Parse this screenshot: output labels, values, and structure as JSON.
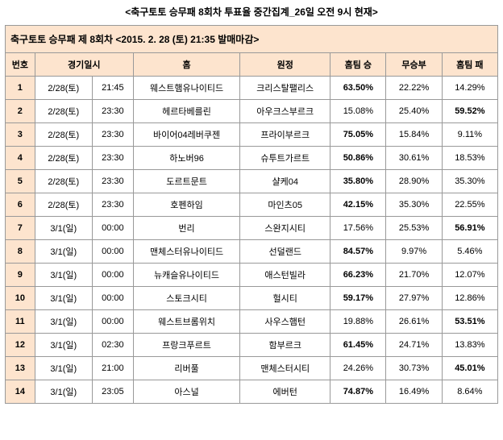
{
  "title": "<축구토토 승무패 8회차 투표율 중간집계_26일 오전 9시 현재>",
  "subtitle": "축구토토 승무패 제 8회차 <2015. 2. 28 (토) 21:35 발매마감>",
  "colors": {
    "header_bg": "#fde4ce",
    "border": "#999999",
    "text": "#000000",
    "bg": "#ffffff"
  },
  "columns": {
    "num": "번호",
    "datetime": "경기일시",
    "home": "홈",
    "away": "원정",
    "win": "홈팀 승",
    "draw": "무승부",
    "lose": "홈팀 패"
  },
  "rows": [
    {
      "num": "1",
      "date": "2/28(토)",
      "time": "21:45",
      "home": "웨스트햄유나이티드",
      "away": "크리스탈팰리스",
      "win": "63.50%",
      "draw": "22.22%",
      "lose": "14.29%",
      "bold": "win"
    },
    {
      "num": "2",
      "date": "2/28(토)",
      "time": "23:30",
      "home": "헤르타베를린",
      "away": "아우크스부르크",
      "win": "15.08%",
      "draw": "25.40%",
      "lose": "59.52%",
      "bold": "lose"
    },
    {
      "num": "3",
      "date": "2/28(토)",
      "time": "23:30",
      "home": "바이어04레버쿠젠",
      "away": "프라이부르크",
      "win": "75.05%",
      "draw": "15.84%",
      "lose": "9.11%",
      "bold": "win"
    },
    {
      "num": "4",
      "date": "2/28(토)",
      "time": "23:30",
      "home": "하노버96",
      "away": "슈투트가르트",
      "win": "50.86%",
      "draw": "30.61%",
      "lose": "18.53%",
      "bold": "win"
    },
    {
      "num": "5",
      "date": "2/28(토)",
      "time": "23:30",
      "home": "도르트문트",
      "away": "샬케04",
      "win": "35.80%",
      "draw": "28.90%",
      "lose": "35.30%",
      "bold": "win"
    },
    {
      "num": "6",
      "date": "2/28(토)",
      "time": "23:30",
      "home": "호펜하임",
      "away": "마인츠05",
      "win": "42.15%",
      "draw": "35.30%",
      "lose": "22.55%",
      "bold": "win"
    },
    {
      "num": "7",
      "date": "3/1(일)",
      "time": "00:00",
      "home": "번리",
      "away": "스완지시티",
      "win": "17.56%",
      "draw": "25.53%",
      "lose": "56.91%",
      "bold": "lose"
    },
    {
      "num": "8",
      "date": "3/1(일)",
      "time": "00:00",
      "home": "맨체스터유나이티드",
      "away": "선덜랜드",
      "win": "84.57%",
      "draw": "9.97%",
      "lose": "5.46%",
      "bold": "win"
    },
    {
      "num": "9",
      "date": "3/1(일)",
      "time": "00:00",
      "home": "뉴캐슬유나이티드",
      "away": "애스턴빌라",
      "win": "66.23%",
      "draw": "21.70%",
      "lose": "12.07%",
      "bold": "win"
    },
    {
      "num": "10",
      "date": "3/1(일)",
      "time": "00:00",
      "home": "스토크시티",
      "away": "헐시티",
      "win": "59.17%",
      "draw": "27.97%",
      "lose": "12.86%",
      "bold": "win"
    },
    {
      "num": "11",
      "date": "3/1(일)",
      "time": "00:00",
      "home": "웨스트브롬위치",
      "away": "사우스햄턴",
      "win": "19.88%",
      "draw": "26.61%",
      "lose": "53.51%",
      "bold": "lose"
    },
    {
      "num": "12",
      "date": "3/1(일)",
      "time": "02:30",
      "home": "프랑크푸르트",
      "away": "함부르크",
      "win": "61.45%",
      "draw": "24.71%",
      "lose": "13.83%",
      "bold": "win"
    },
    {
      "num": "13",
      "date": "3/1(일)",
      "time": "21:00",
      "home": "리버풀",
      "away": "맨체스터시티",
      "win": "24.26%",
      "draw": "30.73%",
      "lose": "45.01%",
      "bold": "lose"
    },
    {
      "num": "14",
      "date": "3/1(일)",
      "time": "23:05",
      "home": "아스널",
      "away": "에버턴",
      "win": "74.87%",
      "draw": "16.49%",
      "lose": "8.64%",
      "bold": "win"
    }
  ]
}
